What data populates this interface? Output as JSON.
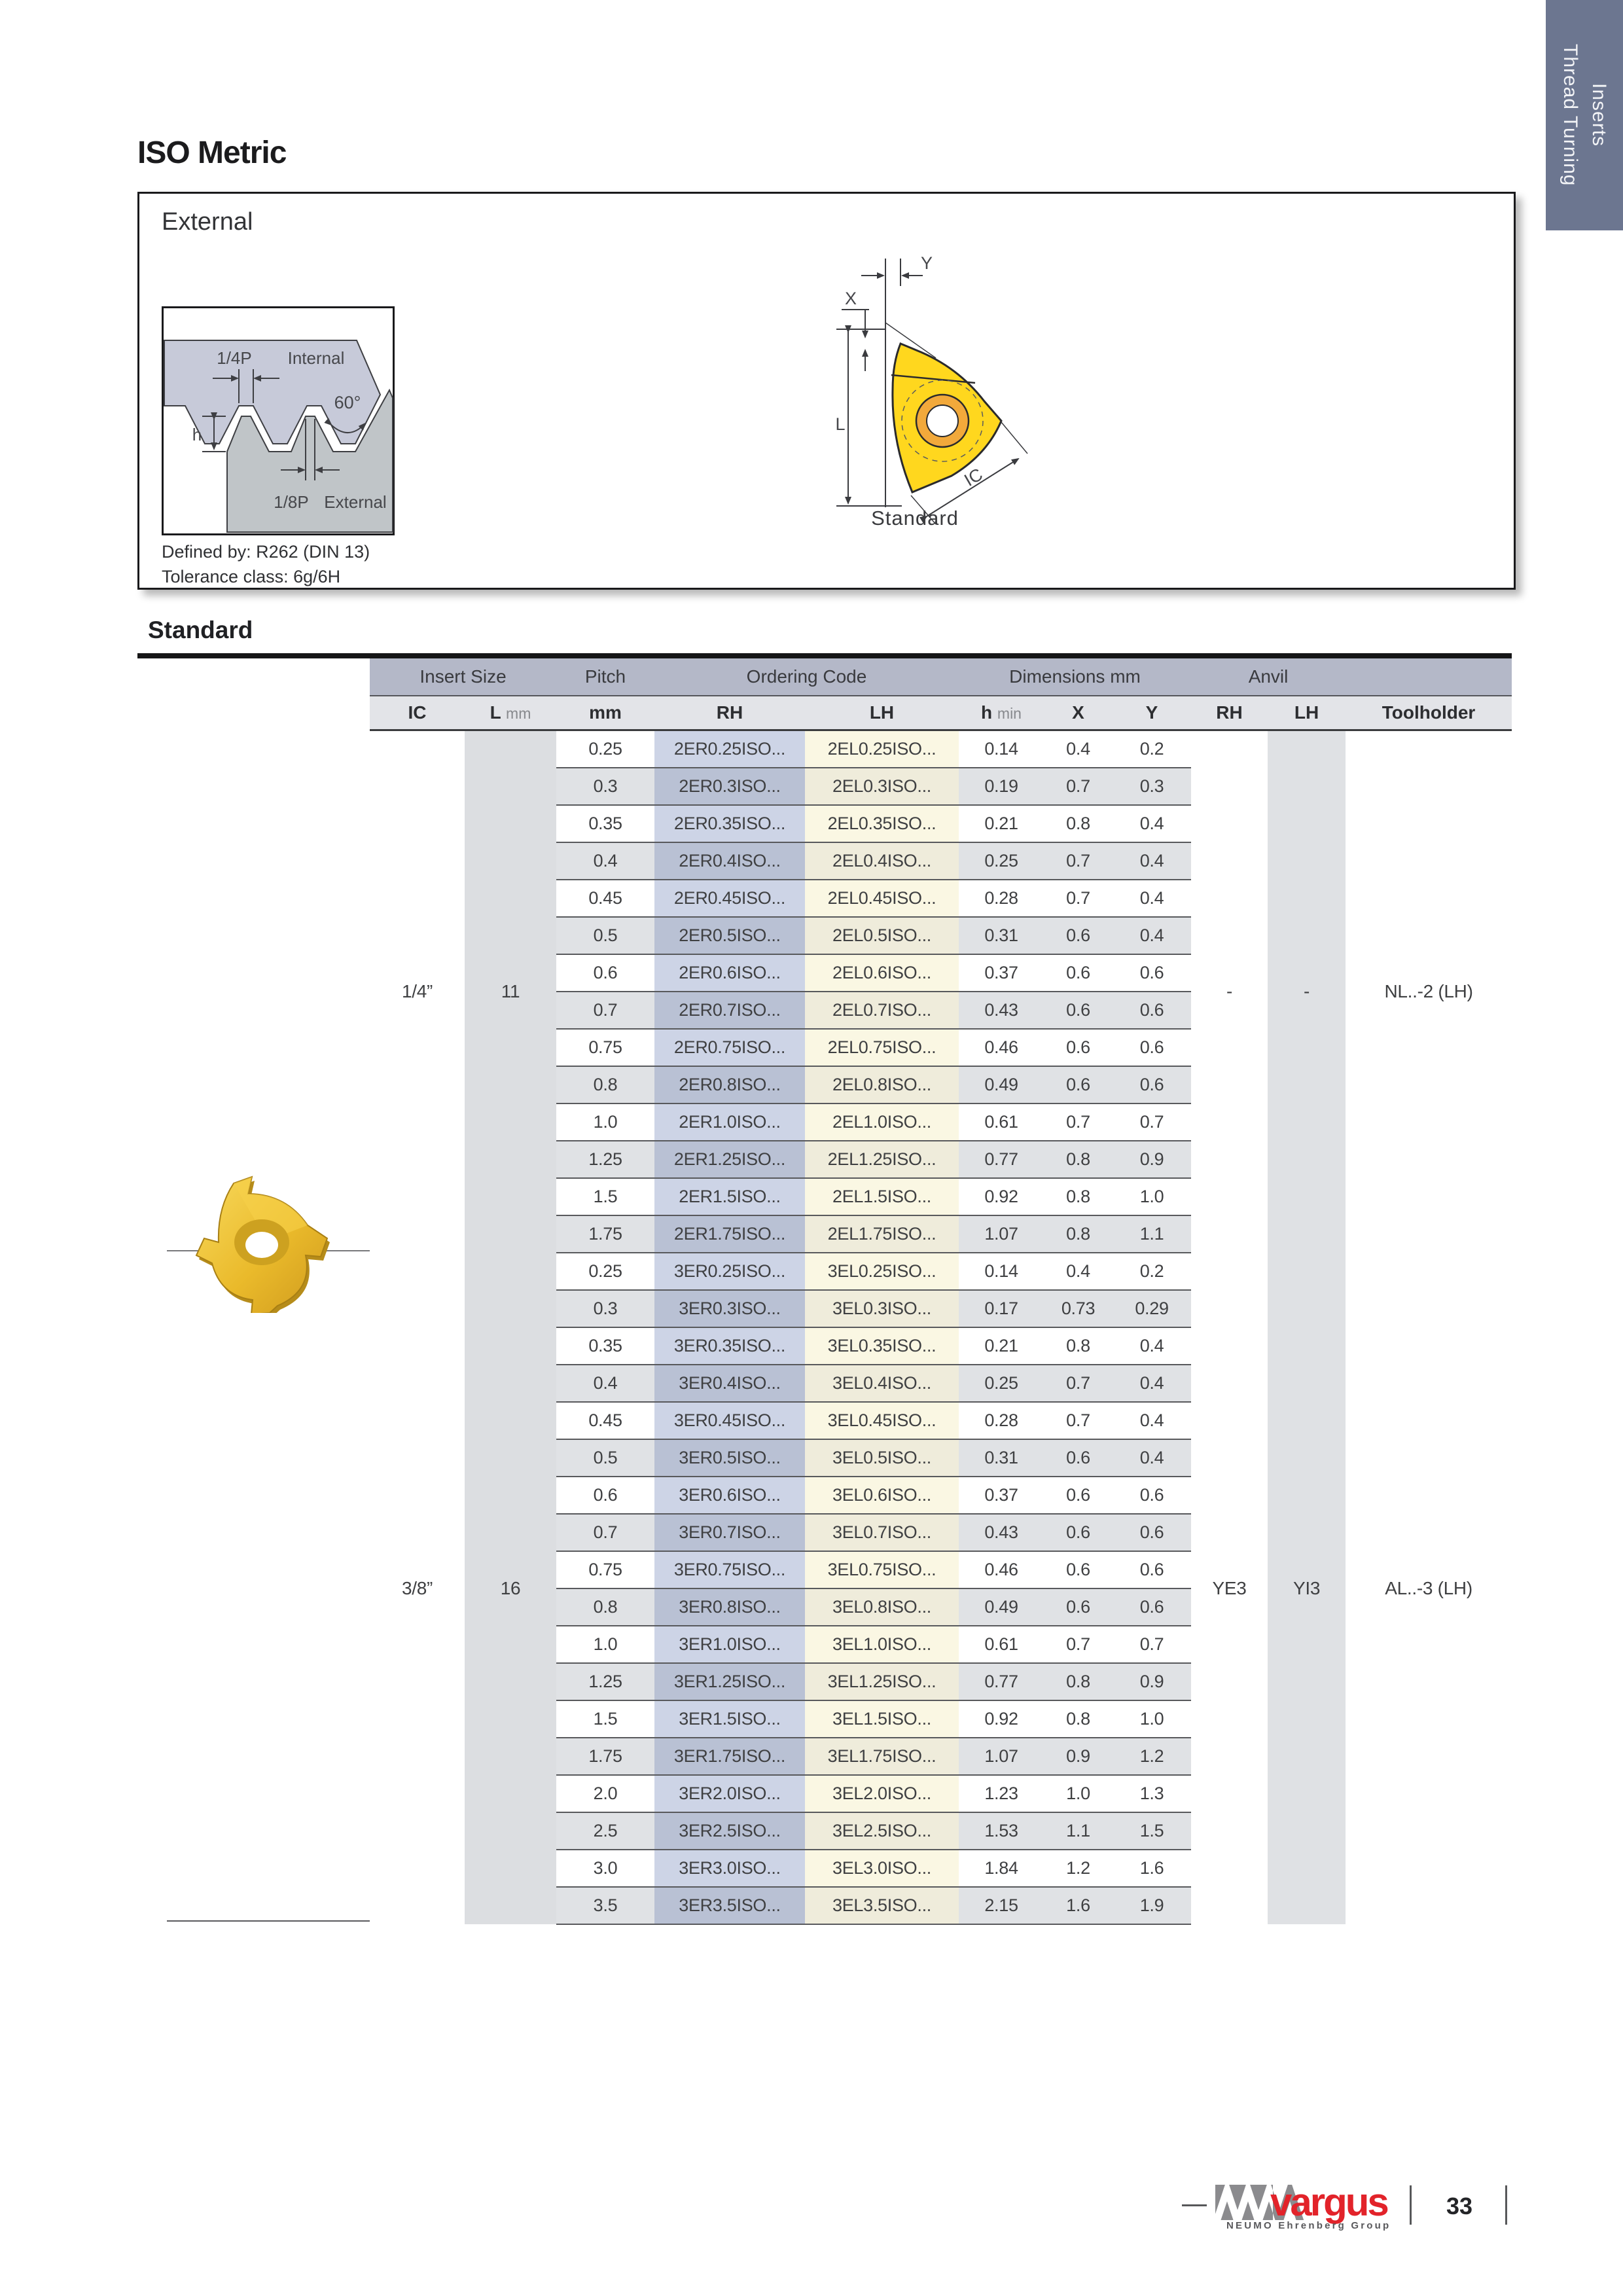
{
  "page": {
    "title": "ISO Metric",
    "page_number": "33"
  },
  "side_tab": {
    "line1": "Thread Turning",
    "line2": "Inserts"
  },
  "external": {
    "title": "External",
    "defined_by": "Defined by: R262 (DIN 13)",
    "tolerance": "Tolerance class: 6g/6H",
    "profile_labels": {
      "quarter_p": "1/4P",
      "internal": "Internal",
      "angle": "60°",
      "h": "h",
      "eighth_p": "1/8P",
      "external": "External"
    },
    "insert_labels": {
      "x": "X",
      "y": "Y",
      "l": "L",
      "ic": "IC",
      "caption": "Standard"
    }
  },
  "table": {
    "section": "Standard",
    "group_headers": {
      "insert_size": "Insert Size",
      "pitch": "Pitch",
      "ordering": "Ordering Code",
      "dimensions": "Dimensions mm",
      "anvil": "Anvil"
    },
    "columns": {
      "ic": "IC",
      "l": "L",
      "l_unit": "mm",
      "mm": "mm",
      "rh": "RH",
      "lh": "LH",
      "h": "h",
      "h_unit": "min",
      "x": "X",
      "y": "Y",
      "anvil_rh": "RH",
      "anvil_lh": "LH",
      "toolholder": "Toolholder"
    },
    "groups": [
      {
        "ic": "1/4”",
        "l": "11",
        "anvil_rh": "-",
        "anvil_lh": "-",
        "toolholder": "NL..-2 (LH)",
        "rows": [
          {
            "pitch": "0.25",
            "rh": "2ER0.25ISO...",
            "lh": "2EL0.25ISO...",
            "h": "0.14",
            "x": "0.4",
            "y": "0.2"
          },
          {
            "pitch": "0.3",
            "rh": "2ER0.3ISO...",
            "lh": "2EL0.3ISO...",
            "h": "0.19",
            "x": "0.7",
            "y": "0.3"
          },
          {
            "pitch": "0.35",
            "rh": "2ER0.35ISO...",
            "lh": "2EL0.35ISO...",
            "h": "0.21",
            "x": "0.8",
            "y": "0.4"
          },
          {
            "pitch": "0.4",
            "rh": "2ER0.4ISO...",
            "lh": "2EL0.4ISO...",
            "h": "0.25",
            "x": "0.7",
            "y": "0.4"
          },
          {
            "pitch": "0.45",
            "rh": "2ER0.45ISO...",
            "lh": "2EL0.45ISO...",
            "h": "0.28",
            "x": "0.7",
            "y": "0.4"
          },
          {
            "pitch": "0.5",
            "rh": "2ER0.5ISO...",
            "lh": "2EL0.5ISO...",
            "h": "0.31",
            "x": "0.6",
            "y": "0.4"
          },
          {
            "pitch": "0.6",
            "rh": "2ER0.6ISO...",
            "lh": "2EL0.6ISO...",
            "h": "0.37",
            "x": "0.6",
            "y": "0.6"
          },
          {
            "pitch": "0.7",
            "rh": "2ER0.7ISO...",
            "lh": "2EL0.7ISO...",
            "h": "0.43",
            "x": "0.6",
            "y": "0.6"
          },
          {
            "pitch": "0.75",
            "rh": "2ER0.75ISO...",
            "lh": "2EL0.75ISO...",
            "h": "0.46",
            "x": "0.6",
            "y": "0.6"
          },
          {
            "pitch": "0.8",
            "rh": "2ER0.8ISO...",
            "lh": "2EL0.8ISO...",
            "h": "0.49",
            "x": "0.6",
            "y": "0.6"
          },
          {
            "pitch": "1.0",
            "rh": "2ER1.0ISO...",
            "lh": "2EL1.0ISO...",
            "h": "0.61",
            "x": "0.7",
            "y": "0.7"
          },
          {
            "pitch": "1.25",
            "rh": "2ER1.25ISO...",
            "lh": "2EL1.25ISO...",
            "h": "0.77",
            "x": "0.8",
            "y": "0.9"
          },
          {
            "pitch": "1.5",
            "rh": "2ER1.5ISO...",
            "lh": "2EL1.5ISO...",
            "h": "0.92",
            "x": "0.8",
            "y": "1.0"
          },
          {
            "pitch": "1.75",
            "rh": "2ER1.75ISO...",
            "lh": "2EL1.75ISO...",
            "h": "1.07",
            "x": "0.8",
            "y": "1.1"
          }
        ]
      },
      {
        "ic": "3/8”",
        "l": "16",
        "anvil_rh": "YE3",
        "anvil_lh": "YI3",
        "toolholder": "AL..-3 (LH)",
        "rows": [
          {
            "pitch": "0.25",
            "rh": "3ER0.25ISO...",
            "lh": "3EL0.25ISO...",
            "h": "0.14",
            "x": "0.4",
            "y": "0.2"
          },
          {
            "pitch": "0.3",
            "rh": "3ER0.3ISO...",
            "lh": "3EL0.3ISO...",
            "h": "0.17",
            "x": "0.73",
            "y": "0.29"
          },
          {
            "pitch": "0.35",
            "rh": "3ER0.35ISO...",
            "lh": "3EL0.35ISO...",
            "h": "0.21",
            "x": "0.8",
            "y": "0.4"
          },
          {
            "pitch": "0.4",
            "rh": "3ER0.4ISO...",
            "lh": "3EL0.4ISO...",
            "h": "0.25",
            "x": "0.7",
            "y": "0.4"
          },
          {
            "pitch": "0.45",
            "rh": "3ER0.45ISO...",
            "lh": "3EL0.45ISO...",
            "h": "0.28",
            "x": "0.7",
            "y": "0.4"
          },
          {
            "pitch": "0.5",
            "rh": "3ER0.5ISO...",
            "lh": "3EL0.5ISO...",
            "h": "0.31",
            "x": "0.6",
            "y": "0.4"
          },
          {
            "pitch": "0.6",
            "rh": "3ER0.6ISO...",
            "lh": "3EL0.6ISO...",
            "h": "0.37",
            "x": "0.6",
            "y": "0.6"
          },
          {
            "pitch": "0.7",
            "rh": "3ER0.7ISO...",
            "lh": "3EL0.7ISO...",
            "h": "0.43",
            "x": "0.6",
            "y": "0.6"
          },
          {
            "pitch": "0.75",
            "rh": "3ER0.75ISO...",
            "lh": "3EL0.75ISO...",
            "h": "0.46",
            "x": "0.6",
            "y": "0.6"
          },
          {
            "pitch": "0.8",
            "rh": "3ER0.8ISO...",
            "lh": "3EL0.8ISO...",
            "h": "0.49",
            "x": "0.6",
            "y": "0.6"
          },
          {
            "pitch": "1.0",
            "rh": "3ER1.0ISO...",
            "lh": "3EL1.0ISO...",
            "h": "0.61",
            "x": "0.7",
            "y": "0.7"
          },
          {
            "pitch": "1.25",
            "rh": "3ER1.25ISO...",
            "lh": "3EL1.25ISO...",
            "h": "0.77",
            "x": "0.8",
            "y": "0.9"
          },
          {
            "pitch": "1.5",
            "rh": "3ER1.5ISO...",
            "lh": "3EL1.5ISO...",
            "h": "0.92",
            "x": "0.8",
            "y": "1.0"
          },
          {
            "pitch": "1.75",
            "rh": "3ER1.75ISO...",
            "lh": "3EL1.75ISO...",
            "h": "1.07",
            "x": "0.9",
            "y": "1.2"
          },
          {
            "pitch": "2.0",
            "rh": "3ER2.0ISO...",
            "lh": "3EL2.0ISO...",
            "h": "1.23",
            "x": "1.0",
            "y": "1.3"
          },
          {
            "pitch": "2.5",
            "rh": "3ER2.5ISO...",
            "lh": "3EL2.5ISO...",
            "h": "1.53",
            "x": "1.1",
            "y": "1.5"
          },
          {
            "pitch": "3.0",
            "rh": "3ER3.0ISO...",
            "lh": "3EL3.0ISO...",
            "h": "1.84",
            "x": "1.2",
            "y": "1.6"
          },
          {
            "pitch": "3.5",
            "rh": "3ER3.5ISO...",
            "lh": "3EL3.5ISO...",
            "h": "2.15",
            "x": "1.6",
            "y": "1.9"
          }
        ]
      }
    ]
  },
  "footer": {
    "brand": "vargus",
    "brand_sub": "NEUMO Ehrenberg Group",
    "page_number": "33"
  },
  "colors": {
    "tab_blue": "#6c7690",
    "band_purple": "#b4b8c8",
    "subhead_gray": "#e3e4e8",
    "row_gray": "#e0e2e5",
    "rh_blue": "#cdd4e6",
    "rh_blue_alt": "#b9c1d4",
    "lh_cream": "#faf7e3",
    "lh_cream_alt": "#efecdb",
    "brand_red": "#e2232a",
    "insert_yellow": "#ffd71e",
    "internal_profile": "#c7cad9",
    "external_profile": "#c0c5c8"
  }
}
